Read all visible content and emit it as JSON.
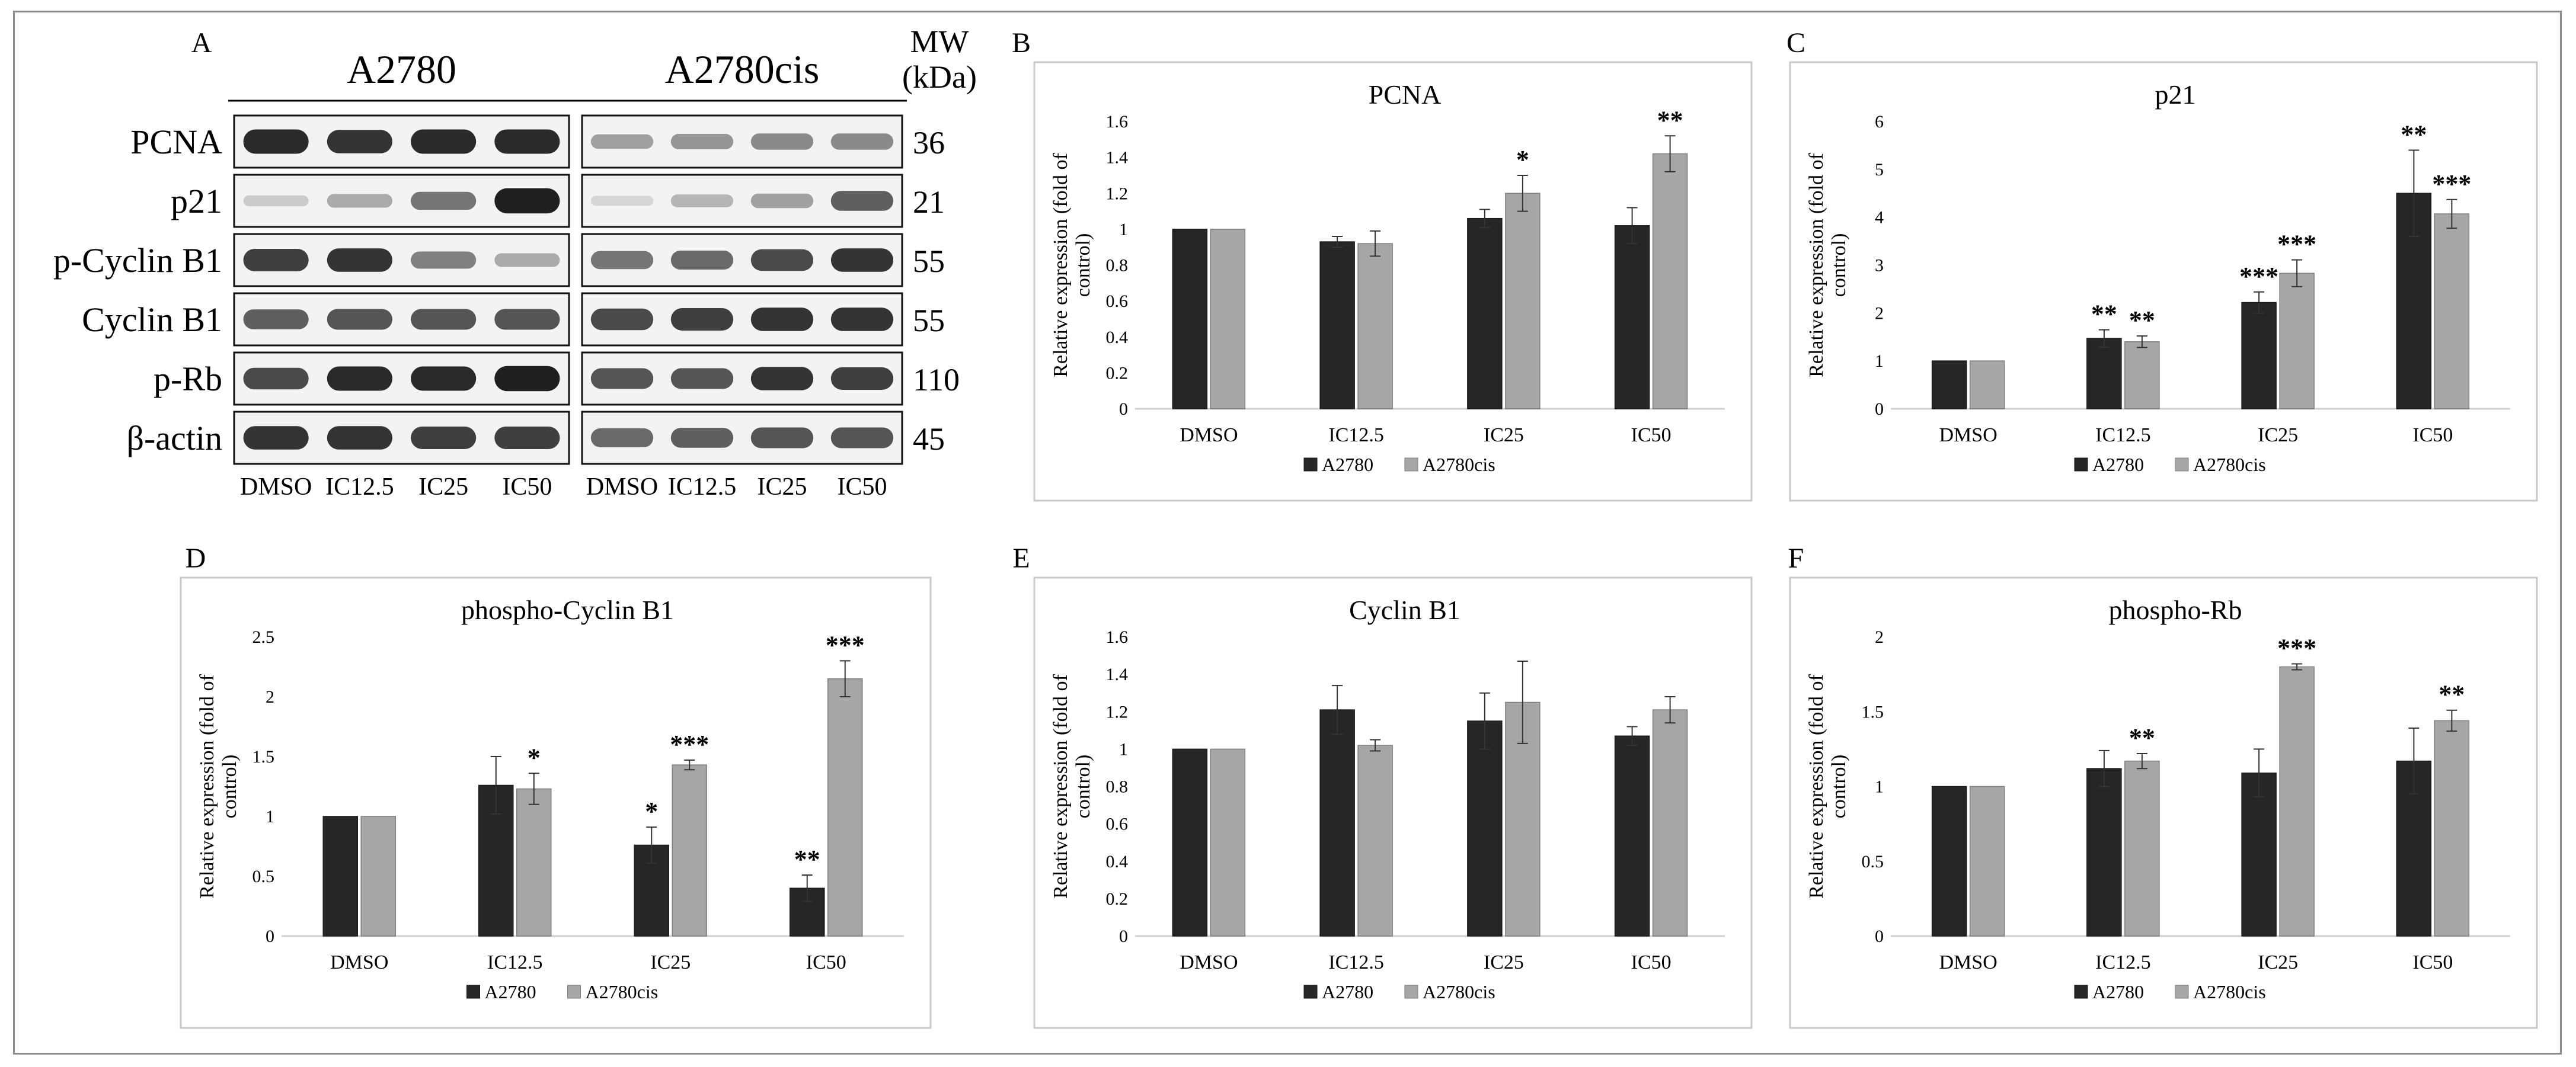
{
  "western_blot": {
    "panel": "A",
    "cell_lines": [
      "A2780",
      "A2780cis"
    ],
    "mw_header": "MW",
    "mw_unit": "(kDa)",
    "proteins": [
      {
        "name": "PCNA",
        "mw": "36",
        "intensity": {
          "A2780": [
            0.9,
            0.85,
            0.9,
            0.9
          ],
          "A2780cis": [
            0.35,
            0.4,
            0.45,
            0.45
          ]
        }
      },
      {
        "name": "p21",
        "mw": "21",
        "intensity": {
          "A2780": [
            0.15,
            0.3,
            0.55,
            0.95
          ],
          "A2780cis": [
            0.1,
            0.25,
            0.35,
            0.65
          ]
        }
      },
      {
        "name": "p-Cyclin B1",
        "mw": "55",
        "intensity": {
          "A2780": [
            0.8,
            0.85,
            0.5,
            0.3
          ],
          "A2780cis": [
            0.55,
            0.6,
            0.75,
            0.85
          ]
        }
      },
      {
        "name": "Cyclin B1",
        "mw": "55",
        "intensity": {
          "A2780": [
            0.65,
            0.7,
            0.7,
            0.7
          ],
          "A2780cis": [
            0.75,
            0.8,
            0.85,
            0.85
          ]
        }
      },
      {
        "name": "p-Rb",
        "mw": "110",
        "intensity": {
          "A2780": [
            0.75,
            0.9,
            0.9,
            0.95
          ],
          "A2780cis": [
            0.7,
            0.7,
            0.85,
            0.8
          ]
        }
      },
      {
        "name": "β-actin",
        "mw": "45",
        "intensity": {
          "A2780": [
            0.85,
            0.85,
            0.8,
            0.8
          ],
          "A2780cis": [
            0.6,
            0.65,
            0.7,
            0.7
          ]
        }
      }
    ],
    "lanes": [
      "DMSO",
      "IC12.5",
      "IC25",
      "IC50"
    ]
  },
  "chart_data": [
    {
      "panel": "B",
      "type": "bar",
      "title": "PCNA",
      "ylabel": "Relative expression (fold of control)",
      "categories": [
        "DMSO",
        "IC12.5",
        "IC25",
        "IC50"
      ],
      "ylim": [
        0,
        1.6
      ],
      "yticks": [
        "0",
        "0.2",
        "0.4",
        "0.6",
        "0.8",
        "1",
        "1.2",
        "1.4",
        "1.6"
      ],
      "series": [
        {
          "name": "A2780",
          "color": "#262626",
          "values": [
            1.0,
            0.93,
            1.06,
            1.02
          ],
          "errors": [
            0.0,
            0.03,
            0.05,
            0.1
          ],
          "sig": [
            "",
            "",
            "",
            ""
          ]
        },
        {
          "name": "A2780cis",
          "color": "#a6a6a6",
          "values": [
            1.0,
            0.92,
            1.2,
            1.42
          ],
          "errors": [
            0.0,
            0.07,
            0.1,
            0.1
          ],
          "sig": [
            "",
            "",
            "*",
            "**"
          ]
        }
      ]
    },
    {
      "panel": "C",
      "type": "bar",
      "title": "p21",
      "ylabel": "Relative expression (fold of control)",
      "categories": [
        "DMSO",
        "IC12.5",
        "IC25",
        "IC50"
      ],
      "ylim": [
        0,
        6
      ],
      "yticks": [
        "0",
        "1",
        "2",
        "3",
        "4",
        "5",
        "6"
      ],
      "series": [
        {
          "name": "A2780",
          "color": "#262626",
          "values": [
            1.0,
            1.47,
            2.22,
            4.5
          ],
          "errors": [
            0.0,
            0.18,
            0.22,
            0.9
          ],
          "sig": [
            "",
            "**",
            "***",
            "**"
          ]
        },
        {
          "name": "A2780cis",
          "color": "#a6a6a6",
          "values": [
            1.0,
            1.4,
            2.83,
            4.07
          ],
          "errors": [
            0.0,
            0.12,
            0.28,
            0.3
          ],
          "sig": [
            "",
            "**",
            "***",
            "***"
          ]
        }
      ]
    },
    {
      "panel": "D",
      "type": "bar",
      "title": "phospho-Cyclin B1",
      "ylabel": "Relative expression (fold of control)",
      "categories": [
        "DMSO",
        "IC12.5",
        "IC25",
        "IC50"
      ],
      "ylim": [
        0,
        2.5
      ],
      "yticks": [
        "0",
        "0.5",
        "1",
        "1.5",
        "2",
        "2.5"
      ],
      "series": [
        {
          "name": "A2780",
          "color": "#262626",
          "values": [
            1.0,
            1.26,
            0.76,
            0.4
          ],
          "errors": [
            0.0,
            0.24,
            0.15,
            0.11
          ],
          "sig": [
            "",
            "",
            "*",
            "**"
          ]
        },
        {
          "name": "A2780cis",
          "color": "#a6a6a6",
          "values": [
            1.0,
            1.23,
            1.43,
            2.15
          ],
          "errors": [
            0.0,
            0.13,
            0.04,
            0.15
          ],
          "sig": [
            "",
            "*",
            "***",
            "***"
          ]
        }
      ]
    },
    {
      "panel": "E",
      "type": "bar",
      "title": "Cyclin B1",
      "ylabel": "Relative expression (fold of control)",
      "categories": [
        "DMSO",
        "IC12.5",
        "IC25",
        "IC50"
      ],
      "ylim": [
        0,
        1.6
      ],
      "yticks": [
        "0",
        "0.2",
        "0.4",
        "0.6",
        "0.8",
        "1",
        "1.2",
        "1.4",
        "1.6"
      ],
      "series": [
        {
          "name": "A2780",
          "color": "#262626",
          "values": [
            1.0,
            1.21,
            1.15,
            1.07
          ],
          "errors": [
            0.0,
            0.13,
            0.15,
            0.05
          ],
          "sig": [
            "",
            "",
            "",
            ""
          ]
        },
        {
          "name": "A2780cis",
          "color": "#a6a6a6",
          "values": [
            1.0,
            1.02,
            1.25,
            1.21
          ],
          "errors": [
            0.0,
            0.03,
            0.22,
            0.07
          ],
          "sig": [
            "",
            "",
            "",
            ""
          ]
        }
      ]
    },
    {
      "panel": "F",
      "type": "bar",
      "title": "phospho-Rb",
      "ylabel": "Relative expression (fold of control)",
      "categories": [
        "DMSO",
        "IC12.5",
        "IC25",
        "IC50"
      ],
      "ylim": [
        0,
        2
      ],
      "yticks": [
        "0",
        "0.5",
        "1",
        "1.5",
        "2"
      ],
      "series": [
        {
          "name": "A2780",
          "color": "#262626",
          "values": [
            1.0,
            1.12,
            1.09,
            1.17
          ],
          "errors": [
            0.0,
            0.12,
            0.16,
            0.22
          ],
          "sig": [
            "",
            "",
            "",
            ""
          ]
        },
        {
          "name": "A2780cis",
          "color": "#a6a6a6",
          "values": [
            1.0,
            1.17,
            1.8,
            1.44
          ],
          "errors": [
            0.0,
            0.05,
            0.02,
            0.07
          ],
          "sig": [
            "",
            "**",
            "***",
            "**"
          ]
        }
      ]
    }
  ]
}
